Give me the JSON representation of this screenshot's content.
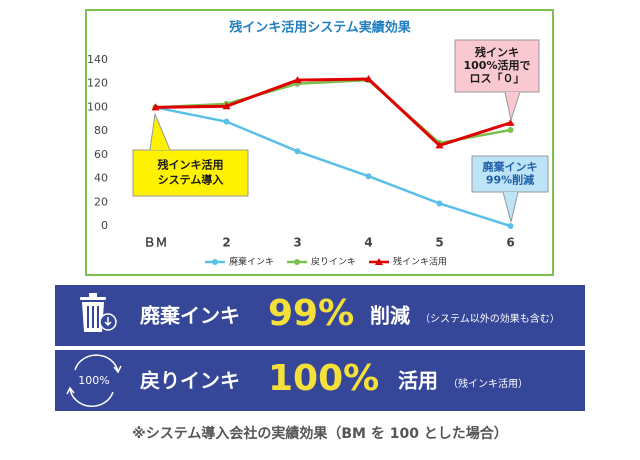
{
  "chart_data": {
    "type": "line",
    "title": "残インキ活用システム実績効果",
    "categories": [
      "ＢＭ",
      "2",
      "3",
      "4",
      "5",
      "6"
    ],
    "series": [
      {
        "name": "廃棄インキ",
        "color": "#5bc0e8",
        "marker": "circle",
        "values": [
          100,
          88,
          63,
          42,
          19,
          0
        ]
      },
      {
        "name": "戻りインキ",
        "color": "#7cc04f",
        "marker": "circle",
        "values": [
          100,
          103,
          120,
          123,
          70,
          81
        ]
      },
      {
        "name": "残インキ活用",
        "color": "#e00000",
        "marker": "triangle",
        "values": [
          100,
          101,
          123,
          124,
          68,
          87
        ]
      }
    ],
    "ylim": [
      0,
      140
    ],
    "yticks": [
      0,
      20,
      40,
      60,
      80,
      100,
      120,
      140
    ],
    "grid": false,
    "legend": "bottom",
    "annotations": [
      {
        "lines": [
          "残インキ活用",
          "システム導入"
        ]
      },
      {
        "lines": [
          "残インキ",
          "100%活用で",
          "ロス「０」"
        ]
      },
      {
        "lines": [
          "廃棄インキ",
          "99%削減"
        ]
      }
    ]
  },
  "banners": [
    {
      "label": "廃棄インキ",
      "figure": "99%",
      "effect": "削減",
      "note": "（システム以外の効果も含む）"
    },
    {
      "icon": "100%",
      "label": "戻りインキ",
      "figure": "100%",
      "effect": "活用",
      "note": "（残インキ活用）"
    }
  ],
  "footnote": "※システム導入会社の実績効果（BM を 100 とした場合）"
}
